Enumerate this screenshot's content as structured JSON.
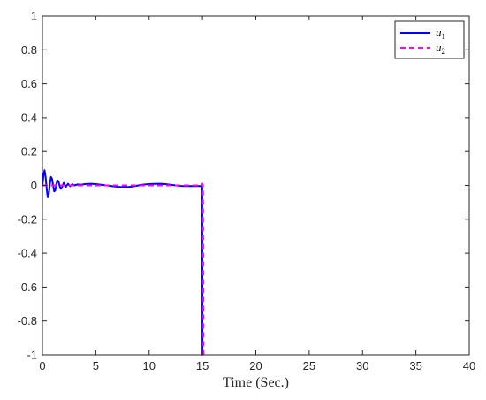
{
  "chart_data": {
    "type": "line",
    "title": "",
    "xlabel": "Time (Sec.)",
    "ylabel": "",
    "xlim": [
      0,
      40
    ],
    "ylim": [
      -1,
      1
    ],
    "xticks": [
      0,
      5,
      10,
      15,
      20,
      25,
      30,
      35,
      40
    ],
    "yticks": [
      -1,
      -0.8,
      -0.6,
      -0.4,
      -0.2,
      0,
      0.2,
      0.4,
      0.6,
      0.8,
      1
    ],
    "xtick_labels": [
      "0",
      "5",
      "10",
      "15",
      "20",
      "25",
      "30",
      "35",
      "40"
    ],
    "ytick_labels": [
      "-1",
      "-0.8",
      "-0.6",
      "-0.4",
      "-0.2",
      "0",
      "0.2",
      "0.4",
      "0.6",
      "0.8",
      "1"
    ],
    "grid": false,
    "legend_position": "top-right",
    "series": [
      {
        "name": "u_1",
        "legend_main": "u",
        "legend_sub": "1",
        "color": "#0000ff",
        "line_style": "solid",
        "x": [
          0,
          0.1,
          0.2,
          0.3,
          0.4,
          0.5,
          0.6,
          0.7,
          0.8,
          0.9,
          1.0,
          1.1,
          1.2,
          1.3,
          1.4,
          1.5,
          1.6,
          1.7,
          1.8,
          1.9,
          2.0,
          2.2,
          2.4,
          2.6,
          2.8,
          3.0,
          3.3,
          3.6,
          4.0,
          4.5,
          5.0,
          5.5,
          6.0,
          6.5,
          7.0,
          7.5,
          8.0,
          8.5,
          9.0,
          9.5,
          10.0,
          10.5,
          11.0,
          11.5,
          12.0,
          12.5,
          13.0,
          13.5,
          14.0,
          14.5,
          14.9,
          14.98,
          15.0,
          15.02
        ],
        "y": [
          0,
          0.06,
          0.09,
          0.05,
          -0.02,
          -0.07,
          -0.05,
          0.01,
          0.05,
          0.04,
          0.0,
          -0.035,
          -0.03,
          0.005,
          0.03,
          0.025,
          0.0,
          -0.02,
          -0.018,
          0.0,
          0.015,
          -0.008,
          0.01,
          -0.005,
          0.007,
          0.0,
          0.006,
          0.004,
          0.008,
          0.01,
          0.008,
          0.004,
          0.0,
          -0.004,
          -0.008,
          -0.01,
          -0.01,
          -0.006,
          0.0,
          0.005,
          0.008,
          0.009,
          0.01,
          0.008,
          0.004,
          0.0,
          -0.003,
          -0.004,
          -0.004,
          -0.004,
          -0.004,
          -0.004,
          -1.0,
          -1.0
        ]
      },
      {
        "name": "u_2",
        "legend_main": "u",
        "legend_sub": "2",
        "color": "#ff00ff",
        "line_style": "dashed",
        "x": [
          0,
          1.0,
          2.0,
          3.0,
          4.0,
          5.0,
          6.0,
          7.0,
          8.0,
          9.0,
          10.0,
          11.0,
          12.0,
          13.0,
          14.0,
          14.9,
          15.0,
          15.05,
          15.1
        ],
        "y": [
          0,
          0,
          0,
          0,
          0,
          0,
          0,
          0,
          0,
          0,
          0,
          0,
          0,
          0,
          0,
          0,
          0.01,
          0.0,
          -1.0
        ]
      }
    ]
  }
}
